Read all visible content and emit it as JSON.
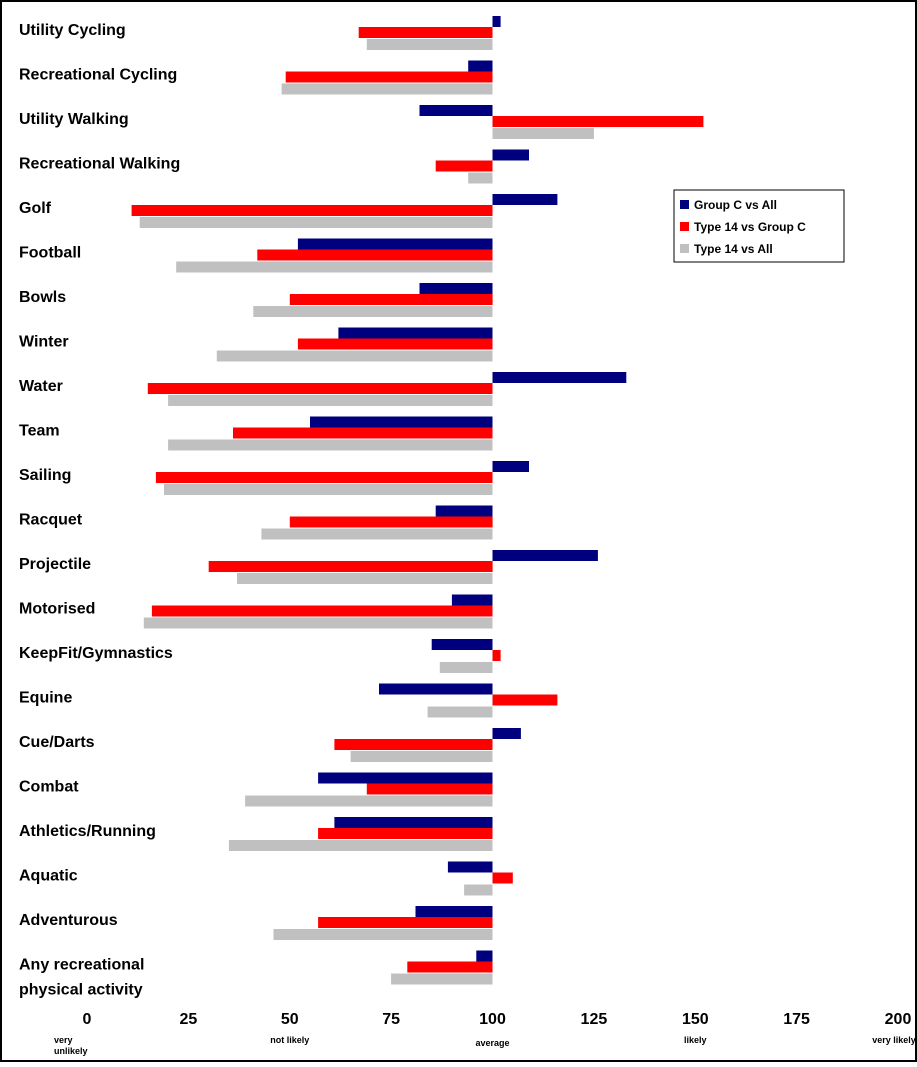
{
  "chart_data": {
    "type": "bar",
    "orientation": "horizontal",
    "title": "",
    "xlabel": "",
    "ylabel": "",
    "xlim": [
      0,
      200
    ],
    "baseline": 100,
    "grid": false,
    "legend_position": "right",
    "categories": [
      "Utility Cycling",
      "Recreational Cycling",
      "Utility Walking",
      "Recreational Walking",
      "Golf",
      "Football",
      "Bowls",
      "Winter",
      "Water",
      "Team",
      "Sailing",
      "Racquet",
      "Projectile",
      "Motorised",
      "KeepFit/Gymnastics",
      "Equine",
      "Cue/Darts",
      "Combat",
      "Athletics/Running",
      "Aquatic",
      "Adventurous",
      [
        "Any recreational",
        "physical activity"
      ]
    ],
    "series": [
      {
        "name": "Group C vs All",
        "color": "#00007f",
        "values": [
          102,
          94,
          82,
          109,
          116,
          52,
          82,
          62,
          133,
          55,
          109,
          86,
          126,
          90,
          85,
          72,
          107,
          57,
          61,
          89,
          81,
          96
        ]
      },
      {
        "name": "Type 14 vs Group C",
        "color": "#ff0000",
        "values": [
          67,
          49,
          152,
          86,
          11,
          42,
          50,
          52,
          15,
          36,
          17,
          50,
          30,
          16,
          102,
          116,
          61,
          69,
          57,
          105,
          57,
          79
        ]
      },
      {
        "name": "Type 14 vs All",
        "color": "#c0c0c0",
        "values": [
          69,
          48,
          125,
          94,
          13,
          22,
          41,
          32,
          20,
          20,
          19,
          43,
          37,
          14,
          87,
          84,
          65,
          39,
          35,
          93,
          46,
          75
        ]
      }
    ],
    "x_ticks": [
      0,
      25,
      50,
      75,
      100,
      125,
      150,
      175,
      200
    ],
    "x_descriptors": [
      {
        "at": 0,
        "lines": [
          "very",
          "unlikely"
        ]
      },
      {
        "at": 50,
        "lines": [
          "not likely"
        ]
      },
      {
        "at": 100,
        "lines": [
          "average"
        ]
      },
      {
        "at": 150,
        "lines": [
          "likely"
        ]
      },
      {
        "at": 200,
        "lines": [
          "very likely"
        ]
      }
    ]
  }
}
